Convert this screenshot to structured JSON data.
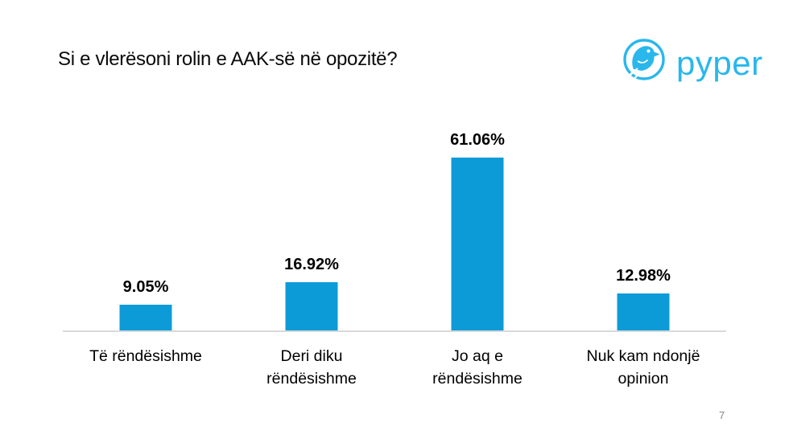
{
  "slide": {
    "page_number": "7",
    "background": "#ffffff"
  },
  "logo": {
    "text": "pyper",
    "icon": "pyper-bird-logo",
    "color": "#29b7ec"
  },
  "chart_data": {
    "type": "bar",
    "title": "Si e vlerësoni rolin e AAK-së në opozitë?",
    "categories": [
      "Të rëndësishme",
      "Deri diku\nrëndësishme",
      "Jo aq e\nrëndësishme",
      "Nuk kam ndonjë\nopinion"
    ],
    "values": [
      9.05,
      16.92,
      61.06,
      12.98
    ],
    "labels": [
      "9.05%",
      "16.92%",
      "61.06%",
      "12.98%"
    ],
    "xlabel": "",
    "ylabel": "",
    "ylim": [
      0,
      77
    ],
    "grid": false,
    "legend": false,
    "label_position": "above-bars",
    "bar_color": "#0d9bd8",
    "baseline_color": "#d9d9d9",
    "value_label_color": "#000000",
    "category_label_color": "#000000"
  }
}
